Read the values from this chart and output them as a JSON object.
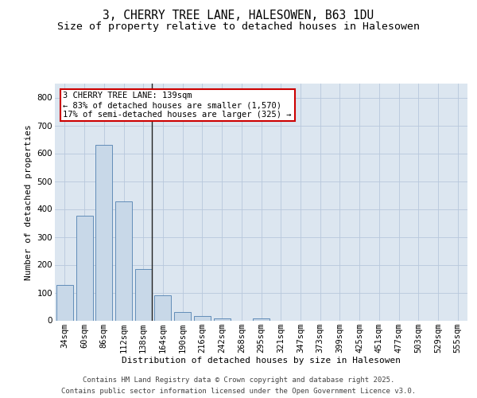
{
  "title_line1": "3, CHERRY TREE LANE, HALESOWEN, B63 1DU",
  "title_line2": "Size of property relative to detached houses in Halesowen",
  "xlabel": "Distribution of detached houses by size in Halesowen",
  "ylabel": "Number of detached properties",
  "footer_line1": "Contains HM Land Registry data © Crown copyright and database right 2025.",
  "footer_line2": "Contains public sector information licensed under the Open Government Licence v3.0.",
  "annotation_line1": "3 CHERRY TREE LANE: 139sqm",
  "annotation_line2": "← 83% of detached houses are smaller (1,570)",
  "annotation_line3": "17% of semi-detached houses are larger (325) →",
  "bar_color": "#c8d8e8",
  "bar_edge_color": "#5080b0",
  "marker_color": "#222222",
  "annotation_box_color": "#cc0000",
  "bg_color": "#dce6f0",
  "grid_color": "#b8c8dc",
  "categories": [
    "34sqm",
    "60sqm",
    "86sqm",
    "112sqm",
    "138sqm",
    "164sqm",
    "190sqm",
    "216sqm",
    "242sqm",
    "268sqm",
    "295sqm",
    "321sqm",
    "347sqm",
    "373sqm",
    "399sqm",
    "425sqm",
    "451sqm",
    "477sqm",
    "503sqm",
    "529sqm",
    "555sqm"
  ],
  "values": [
    127,
    375,
    630,
    428,
    185,
    90,
    30,
    15,
    8,
    0,
    8,
    0,
    0,
    0,
    0,
    0,
    0,
    0,
    0,
    0,
    0
  ],
  "ylim": [
    0,
    850
  ],
  "yticks": [
    0,
    100,
    200,
    300,
    400,
    500,
    600,
    700,
    800
  ],
  "title_fontsize": 10.5,
  "subtitle_fontsize": 9.5,
  "axis_label_fontsize": 8,
  "tick_fontsize": 7.5,
  "annotation_fontsize": 7.5,
  "footer_fontsize": 6.5
}
